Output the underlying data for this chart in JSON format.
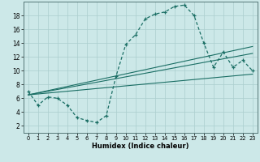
{
  "xlabel": "Humidex (Indice chaleur)",
  "bg_color": "#cce8e8",
  "grid_color": "#aacece",
  "line_color": "#1a6e64",
  "xlim": [
    -0.5,
    23.5
  ],
  "ylim": [
    1,
    20
  ],
  "yticks": [
    2,
    4,
    6,
    8,
    10,
    12,
    14,
    16,
    18
  ],
  "xticks": [
    0,
    1,
    2,
    3,
    4,
    5,
    6,
    7,
    8,
    9,
    10,
    11,
    12,
    13,
    14,
    15,
    16,
    17,
    18,
    19,
    20,
    21,
    22,
    23
  ],
  "curve1_x": [
    0,
    1,
    2,
    3,
    4,
    5,
    6,
    7,
    8,
    9,
    10,
    11,
    12,
    13,
    14,
    15,
    16,
    17,
    18,
    19,
    20,
    21,
    22,
    23
  ],
  "curve1_y": [
    7.0,
    5.0,
    6.2,
    6.0,
    5.0,
    3.2,
    2.8,
    2.5,
    3.5,
    9.2,
    13.8,
    15.2,
    17.5,
    18.2,
    18.5,
    19.3,
    19.5,
    18.0,
    14.0,
    10.5,
    12.7,
    10.5,
    11.5,
    10.0
  ],
  "line1_x": [
    0,
    23
  ],
  "line1_y": [
    6.5,
    9.5
  ],
  "line2_x": [
    0,
    23
  ],
  "line2_y": [
    6.5,
    12.5
  ],
  "line3_x": [
    0,
    23
  ],
  "line3_y": [
    6.5,
    13.5
  ]
}
